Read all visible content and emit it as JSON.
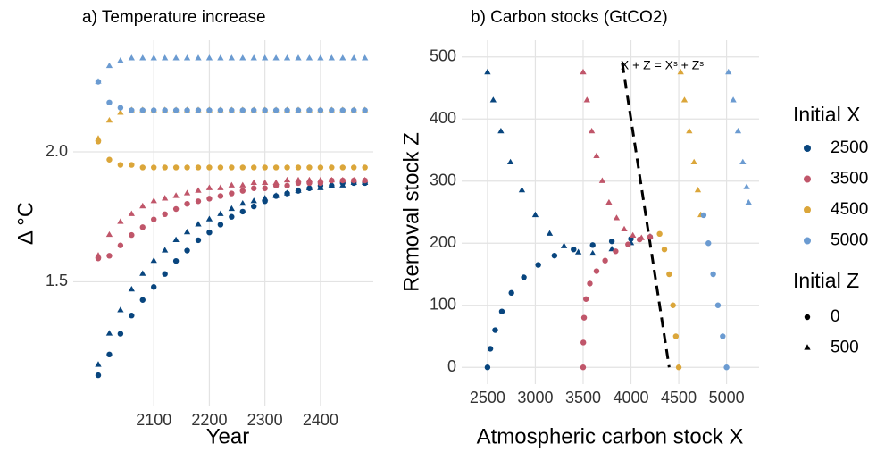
{
  "chart_data": [
    {
      "type": "scatter",
      "title": "a) Temperature increase",
      "x_label": "Year",
      "y_label": "Δ °C",
      "xlim": [
        1955,
        2495
      ],
      "xticks": [
        2100,
        2200,
        2300,
        2400
      ],
      "ylim": [
        1.02,
        2.43
      ],
      "yticks": [
        {
          "value": 1.5,
          "label": "1.5"
        },
        {
          "value": 2,
          "label": "2.0"
        }
      ],
      "grid": true,
      "x": [
        2000,
        2020,
        2040,
        2060,
        2080,
        2100,
        2120,
        2140,
        2160,
        2180,
        2200,
        2220,
        2240,
        2260,
        2280,
        2300,
        2320,
        2340,
        2360,
        2380,
        2400,
        2420,
        2440,
        2460,
        2480
      ],
      "series": [
        {
          "color": "#08457e",
          "marker": "circle",
          "values": [
            1.14,
            1.22,
            1.3,
            1.37,
            1.43,
            1.48,
            1.53,
            1.58,
            1.62,
            1.66,
            1.69,
            1.72,
            1.75,
            1.77,
            1.79,
            1.81,
            1.83,
            1.84,
            1.85,
            1.86,
            1.87,
            1.87,
            1.88,
            1.88,
            1.88
          ]
        },
        {
          "color": "#08457e",
          "marker": "triangle",
          "values": [
            1.18,
            1.3,
            1.39,
            1.47,
            1.53,
            1.58,
            1.62,
            1.66,
            1.69,
            1.72,
            1.74,
            1.76,
            1.78,
            1.8,
            1.81,
            1.82,
            1.83,
            1.84,
            1.85,
            1.86,
            1.86,
            1.87,
            1.87,
            1.88,
            1.88
          ]
        },
        {
          "color": "#c0566a",
          "marker": "circle",
          "values": [
            1.59,
            1.6,
            1.64,
            1.68,
            1.71,
            1.74,
            1.76,
            1.78,
            1.8,
            1.81,
            1.82,
            1.83,
            1.84,
            1.85,
            1.86,
            1.86,
            1.87,
            1.87,
            1.88,
            1.88,
            1.88,
            1.89,
            1.89,
            1.89,
            1.89
          ]
        },
        {
          "color": "#c0566a",
          "marker": "triangle",
          "values": [
            1.6,
            1.68,
            1.73,
            1.76,
            1.79,
            1.81,
            1.82,
            1.83,
            1.84,
            1.85,
            1.86,
            1.86,
            1.87,
            1.87,
            1.88,
            1.88,
            1.88,
            1.89,
            1.89,
            1.89,
            1.89,
            1.89,
            1.89,
            1.89,
            1.89
          ]
        },
        {
          "color": "#dba63a",
          "marker": "circle",
          "values": [
            2.04,
            1.97,
            1.95,
            1.95,
            1.94,
            1.94,
            1.94,
            1.94,
            1.94,
            1.94,
            1.94,
            1.94,
            1.94,
            1.94,
            1.94,
            1.94,
            1.94,
            1.94,
            1.94,
            1.94,
            1.94,
            1.94,
            1.94,
            1.94,
            1.94
          ]
        },
        {
          "color": "#dba63a",
          "marker": "triangle",
          "values": [
            2.05,
            2.12,
            2.15,
            2.16,
            2.16,
            2.16,
            2.16,
            2.16,
            2.16,
            2.16,
            2.16,
            2.16,
            2.16,
            2.16,
            2.16,
            2.16,
            2.16,
            2.16,
            2.16,
            2.16,
            2.16,
            2.16,
            2.16,
            2.16,
            2.16
          ]
        },
        {
          "color": "#6b9bd1",
          "marker": "circle",
          "values": [
            2.27,
            2.19,
            2.17,
            2.16,
            2.16,
            2.16,
            2.16,
            2.16,
            2.16,
            2.16,
            2.16,
            2.16,
            2.16,
            2.16,
            2.16,
            2.16,
            2.16,
            2.16,
            2.16,
            2.16,
            2.16,
            2.16,
            2.16,
            2.16,
            2.16
          ]
        },
        {
          "color": "#6b9bd1",
          "marker": "triangle",
          "values": [
            2.27,
            2.33,
            2.35,
            2.36,
            2.36,
            2.36,
            2.36,
            2.36,
            2.36,
            2.36,
            2.36,
            2.36,
            2.36,
            2.36,
            2.36,
            2.36,
            2.36,
            2.36,
            2.36,
            2.36,
            2.36,
            2.36,
            2.36,
            2.36,
            2.36
          ]
        }
      ]
    },
    {
      "type": "scatter",
      "title": "b) Carbon stocks (GtCO2)",
      "x_label": "Atmospheric carbon stock X",
      "y_label": "Removal stock Z",
      "xlim": [
        2230,
        5340
      ],
      "xticks": [
        2500,
        3000,
        3500,
        4000,
        4500,
        5000
      ],
      "ylim": [
        -27,
        527
      ],
      "yticks": [
        0,
        100,
        200,
        300,
        400,
        500
      ],
      "grid": true,
      "reference_line": {
        "label": "X + Z = Xˢ + Zˢ",
        "x": [
          3910,
          4400
        ],
        "y": [
          490,
          0
        ]
      },
      "series": [
        {
          "color": "#08457e",
          "marker": "circle",
          "x": [
            2500,
            2530,
            2580,
            2650,
            2750,
            2880,
            3030,
            3200,
            3400,
            3600,
            3800,
            4000,
            4200
          ],
          "values": [
            0,
            30,
            60,
            90,
            120,
            145,
            165,
            180,
            190,
            197,
            203,
            207,
            210
          ]
        },
        {
          "color": "#08457e",
          "marker": "triangle",
          "x": [
            2500,
            2560,
            2640,
            2740,
            2860,
            3000,
            3150,
            3300,
            3450,
            3600,
            3800,
            4000,
            4200
          ],
          "values": [
            475,
            430,
            380,
            330,
            285,
            245,
            215,
            195,
            185,
            183,
            190,
            200,
            210
          ]
        },
        {
          "color": "#c0566a",
          "marker": "circle",
          "x": [
            3500,
            3502,
            3510,
            3530,
            3570,
            3640,
            3730,
            3840,
            3970,
            4090,
            4200
          ],
          "values": [
            0,
            40,
            80,
            110,
            135,
            155,
            172,
            187,
            198,
            206,
            210
          ]
        },
        {
          "color": "#c0566a",
          "marker": "triangle",
          "x": [
            3500,
            3540,
            3590,
            3640,
            3700,
            3770,
            3850,
            3930,
            4020,
            4110,
            4200
          ],
          "values": [
            475,
            430,
            380,
            340,
            300,
            265,
            240,
            222,
            212,
            208,
            210
          ]
        },
        {
          "color": "#dba63a",
          "marker": "circle",
          "x": [
            4500,
            4470,
            4440,
            4400,
            4350,
            4300
          ],
          "values": [
            0,
            50,
            100,
            150,
            190,
            215
          ]
        },
        {
          "color": "#dba63a",
          "marker": "triangle",
          "x": [
            4520,
            4560,
            4610,
            4660,
            4700,
            4730
          ],
          "values": [
            475,
            430,
            380,
            330,
            285,
            245
          ]
        },
        {
          "color": "#6b9bd1",
          "marker": "circle",
          "x": [
            5000,
            4960,
            4910,
            4860,
            4810,
            4760
          ],
          "values": [
            0,
            50,
            100,
            150,
            200,
            245
          ]
        },
        {
          "color": "#6b9bd1",
          "marker": "triangle",
          "x": [
            5020,
            5070,
            5120,
            5170,
            5210,
            5230
          ],
          "values": [
            475,
            430,
            380,
            330,
            290,
            265
          ]
        }
      ]
    }
  ],
  "legend": {
    "color_title": "Initial X",
    "colors": [
      {
        "label": "2500",
        "color": "#08457e"
      },
      {
        "label": "3500",
        "color": "#c0566a"
      },
      {
        "label": "4500",
        "color": "#dba63a"
      },
      {
        "label": "5000",
        "color": "#6b9bd1"
      }
    ],
    "shape_title": "Initial Z",
    "shapes": [
      {
        "label": "0",
        "shape": "circle"
      },
      {
        "label": "500",
        "shape": "triangle"
      }
    ]
  }
}
